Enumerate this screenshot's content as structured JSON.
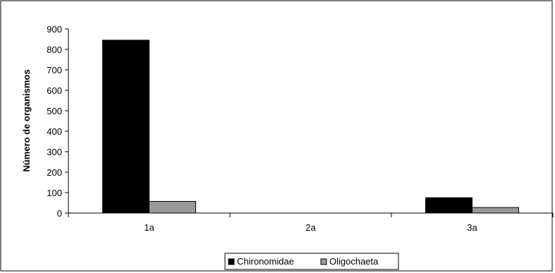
{
  "chart_data": {
    "type": "bar",
    "categories": [
      "1a",
      "2a",
      "3a"
    ],
    "series": [
      {
        "name": "Chironomidae",
        "values": [
          845,
          0,
          75
        ],
        "color": "#000000"
      },
      {
        "name": "Oligochaeta",
        "values": [
          57,
          0,
          27
        ],
        "color": "#999999"
      }
    ],
    "title": "",
    "xlabel": "",
    "ylabel": "Número de organismos",
    "ylim": [
      0,
      900
    ],
    "yticks": [
      0,
      100,
      200,
      300,
      400,
      500,
      600,
      700,
      800,
      900
    ],
    "grid": false,
    "legend_position": "bottom-center"
  }
}
